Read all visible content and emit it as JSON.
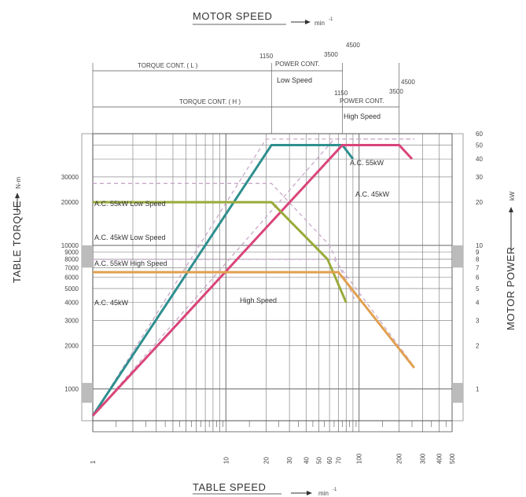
{
  "chart_data": {
    "type": "line",
    "title_top": "MOTOR SPEED",
    "title_top_unit": "min",
    "title_top_exp": "-1",
    "title_bottom": "TABLE SPEED",
    "title_bottom_unit": "min",
    "title_bottom_exp": "-1",
    "ylabel_left": "TABLE TORQUE",
    "ylabel_left_unit": "N-m",
    "ylabel_right": "MOTOR POWER",
    "ylabel_right_unit": "kW",
    "x_scale": "log",
    "xlim": [
      1,
      500
    ],
    "ylim_torque": [
      600,
      60000
    ],
    "ylim_power": [
      0.6,
      60
    ],
    "x_ticks": [
      "1",
      "10",
      "20",
      "30",
      "40",
      "50",
      "60",
      "70",
      "100",
      "200",
      "300",
      "400",
      "500"
    ],
    "y_ticks_left": [
      "1000",
      "2000",
      "3000",
      "4000",
      "5000",
      "6000",
      "7000",
      "8000",
      "9000",
      "10000",
      "20000",
      "30000"
    ],
    "y_ticks_right": [
      "1",
      "2",
      "3",
      "4",
      "5",
      "6",
      "7",
      "8",
      "9",
      "10",
      "20",
      "30",
      "40",
      "50",
      "60"
    ],
    "header": {
      "torque_low": "TORQUE CONT. ( L )",
      "power_low": "POWER CONT.",
      "speed_low": "Low Speed",
      "torque_high": "TORQUE CONT. ( H )",
      "power_high": "POWER CONT.",
      "speed_high": "High Speed",
      "low_1150": "1150",
      "low_3500": "3500",
      "low_4500": "4500",
      "high_1150": "1150",
      "high_3500": "3500",
      "high_4500": "4500"
    },
    "annotations": {
      "ac55_low": "A.C. 55kW  Low Speed",
      "ac45_low": "A.C. 45kW  Low Speed",
      "ac55_high": "A.C. 55kW  High Speed",
      "ac45": "A.C. 45kW",
      "high_speed": "High Speed",
      "ac55_power": "A.C. 55kW",
      "ac45_power": "A.C. 45kW"
    },
    "series": [
      {
        "color": "#2f8f8f",
        "axis": "power",
        "x": [
          1,
          22,
          75,
          90
        ],
        "y": [
          0.65,
          50,
          50,
          40
        ]
      },
      {
        "color": "#d9457a",
        "axis": "power",
        "x": [
          1,
          75,
          200,
          250
        ],
        "y": [
          0.65,
          50,
          50,
          40
        ]
      },
      {
        "color": "#9aaa3a",
        "axis": "torque",
        "x": [
          1,
          22,
          58,
          80
        ],
        "y": [
          20000,
          20000,
          8000,
          4000
        ]
      },
      {
        "color": "#e0a050",
        "axis": "torque",
        "x": [
          1,
          70,
          260
        ],
        "y": [
          6500,
          6500,
          1400
        ]
      }
    ],
    "dashed": [
      {
        "color": "#c8a8c8",
        "axis": "torque",
        "x": [
          1,
          22,
          60,
          95
        ],
        "y": [
          27000,
          27000,
          10000,
          4000
        ]
      },
      {
        "color": "#c8a8c8",
        "axis": "torque",
        "x": [
          1,
          65,
          250
        ],
        "y": [
          8000,
          8000,
          1500
        ]
      },
      {
        "color": "#c8a8c8",
        "axis": "power",
        "x": [
          1,
          20,
          260
        ],
        "y": [
          0.65,
          55,
          55
        ]
      },
      {
        "color": "#c8a8c8",
        "axis": "power",
        "x": [
          1,
          65,
          260
        ],
        "y": [
          0.65,
          55,
          55
        ]
      }
    ],
    "grid": true
  }
}
